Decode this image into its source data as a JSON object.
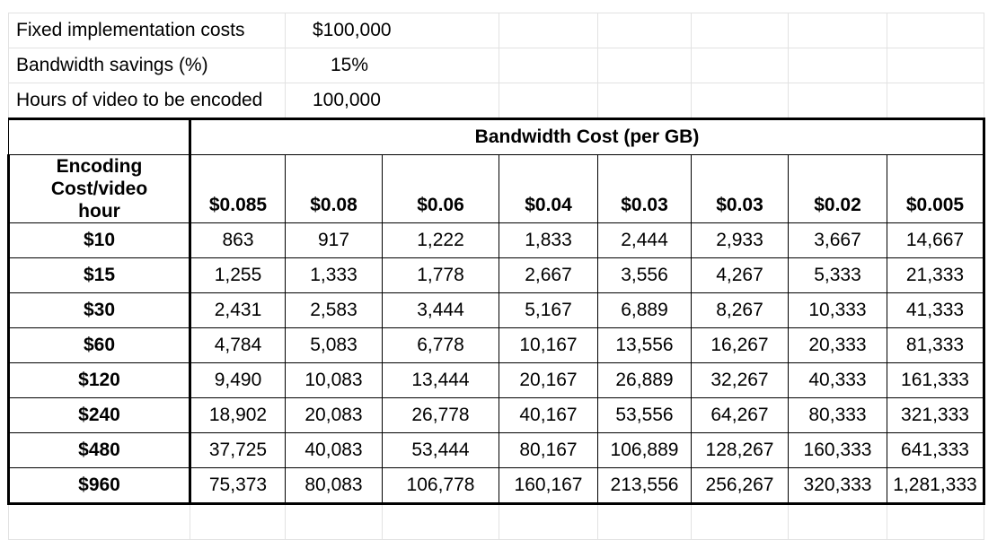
{
  "inputs": [
    {
      "label": "Fixed implementation costs",
      "value": "$100,000"
    },
    {
      "label": "Bandwidth savings (%)",
      "value": "15%"
    },
    {
      "label": "Hours of video to be encoded",
      "value": "100,000"
    }
  ],
  "table": {
    "group_header": "Bandwidth Cost (per GB)",
    "row_header_label": "Encoding Cost/video hour",
    "row_header_lines": [
      "Encoding",
      "Cost/video",
      "hour"
    ],
    "columns": [
      "$0.085",
      "$0.08",
      "$0.06",
      "$0.04",
      "$0.03",
      "$0.03",
      "$0.02",
      "$0.005"
    ],
    "rows": [
      {
        "label": "$10",
        "values": [
          "863",
          "917",
          "1,222",
          "1,833",
          "2,444",
          "2,933",
          "3,667",
          "14,667"
        ]
      },
      {
        "label": "$15",
        "values": [
          "1,255",
          "1,333",
          "1,778",
          "2,667",
          "3,556",
          "4,267",
          "5,333",
          "21,333"
        ]
      },
      {
        "label": "$30",
        "values": [
          "2,431",
          "2,583",
          "3,444",
          "5,167",
          "6,889",
          "8,267",
          "10,333",
          "41,333"
        ]
      },
      {
        "label": "$60",
        "values": [
          "4,784",
          "5,083",
          "6,778",
          "10,167",
          "13,556",
          "16,267",
          "20,333",
          "81,333"
        ]
      },
      {
        "label": "$120",
        "values": [
          "9,490",
          "10,083",
          "13,444",
          "20,167",
          "26,889",
          "32,267",
          "40,333",
          "161,333"
        ]
      },
      {
        "label": "$240",
        "values": [
          "18,902",
          "20,083",
          "26,778",
          "40,167",
          "53,556",
          "64,267",
          "80,333",
          "321,333"
        ]
      },
      {
        "label": "$480",
        "values": [
          "37,725",
          "40,083",
          "53,444",
          "80,167",
          "106,889",
          "128,267",
          "160,333",
          "641,333"
        ]
      },
      {
        "label": "$960",
        "values": [
          "75,373",
          "80,083",
          "106,778",
          "160,167",
          "213,556",
          "256,267",
          "320,333",
          "1,281,333"
        ]
      }
    ]
  }
}
